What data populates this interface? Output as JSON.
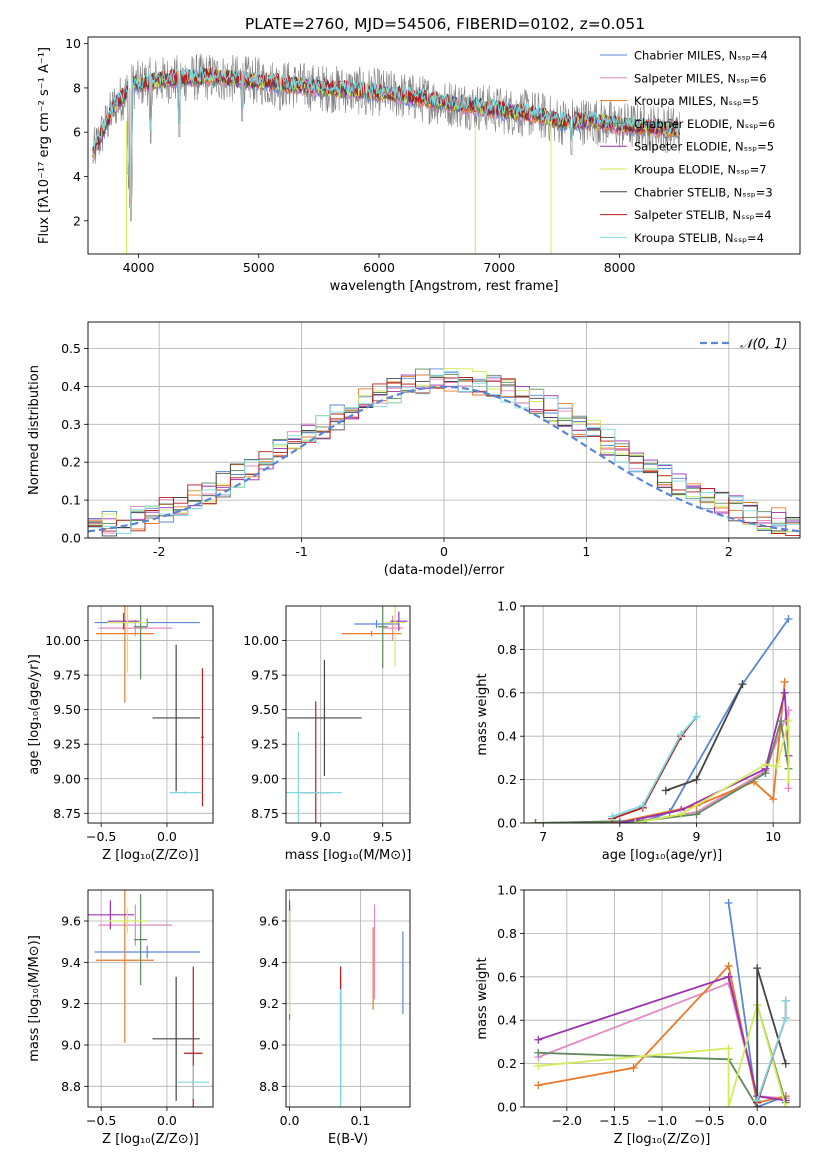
{
  "figure": {
    "title": "PLATE=2760, MJD=54506, FIBERID=0102, z=0.051"
  },
  "colors": {
    "Chabrier MILES": "#5b86d6",
    "Salpeter MILES": "#e58ac3",
    "Kroupa MILES": "#e87a2a",
    "Chabrier ELODIE": "#5f8a5f",
    "Salpeter ELODIE": "#9a30b0",
    "Kroupa ELODIE": "#d2ec5a",
    "Chabrier STELIB": "#444444",
    "Salpeter STELIB": "#b81c1c",
    "Kroupa STELIB": "#7fd9e0",
    "data": "#7f7f7f"
  },
  "chart_data": [
    {
      "id": "spectrum",
      "type": "line",
      "xlabel": "wavelength [Angstrom, rest frame]",
      "ylabel": "Flux [fλ10⁻¹⁷ erg cm⁻² s⁻¹ A⁻¹]",
      "xlim": [
        3580,
        9500
      ],
      "ylim": [
        0.5,
        10.3
      ],
      "xticks": [
        4000,
        5000,
        6000,
        7000,
        8000
      ],
      "yticks": [
        2,
        4,
        6,
        8,
        10
      ],
      "grid": false,
      "legend": "top-right",
      "legend_entries": [
        "Chabrier MILES, Nₛₛₚ=4",
        "Salpeter MILES, Nₛₛₚ=6",
        "Kroupa MILES, Nₛₛₚ=5",
        "Chabrier ELODIE, Nₛₛₚ=6",
        "Salpeter ELODIE, Nₛₛₚ=5",
        "Kroupa ELODIE, Nₛₛₚ=7",
        "Chabrier STELIB, Nₛₛₚ=3",
        "Salpeter STELIB, Nₛₛₚ=4",
        "Kroupa STELIB, Nₛₛₚ=4"
      ],
      "continuum": [
        [
          3620,
          5.0
        ],
        [
          3700,
          6.0
        ],
        [
          3800,
          7.2
        ],
        [
          3950,
          8.1
        ],
        [
          4100,
          8.3
        ],
        [
          4300,
          8.4
        ],
        [
          4600,
          8.5
        ],
        [
          5000,
          8.3
        ],
        [
          5500,
          8.0
        ],
        [
          6000,
          7.8
        ],
        [
          6500,
          7.4
        ],
        [
          7000,
          7.0
        ],
        [
          7300,
          6.8
        ],
        [
          7500,
          6.5
        ],
        [
          7800,
          6.5
        ],
        [
          8000,
          6.3
        ],
        [
          8300,
          6.2
        ],
        [
          8500,
          6.1
        ]
      ]
    },
    {
      "id": "residuals",
      "type": "histogram",
      "xlabel": "(data-model)/error",
      "ylabel": "Normed distribution",
      "xlim": [
        -2.5,
        2.5
      ],
      "ylim": [
        0,
        0.57
      ],
      "xticks": [
        -2,
        -1,
        0,
        1,
        2
      ],
      "yticks": [
        0.0,
        0.1,
        0.2,
        0.3,
        0.4,
        0.5
      ],
      "grid": true,
      "legend": "top-right",
      "reference_label": "𝒩(0, 1)",
      "bin_width": 0.1
    },
    {
      "id": "age_vs_Z",
      "type": "scatter",
      "xlabel": "Z [log₁₀(Z/Z⊙)]",
      "ylabel": "age  [log₁₀(age/yr)]",
      "xlim": [
        -0.6,
        0.35
      ],
      "ylim": [
        8.68,
        10.25
      ],
      "xticks": [
        -0.5,
        0.0
      ],
      "yticks": [
        8.75,
        9.0,
        9.25,
        9.5,
        9.75,
        10.0
      ],
      "grid": true,
      "points": [
        {
          "model": "Chabrier MILES",
          "x": -0.15,
          "y": 10.13,
          "xerr": 0.4,
          "yerr": 0.03
        },
        {
          "model": "Salpeter MILES",
          "x": -0.24,
          "y": 10.09,
          "xerr": 0.28,
          "yerr": 0.06
        },
        {
          "model": "Kroupa MILES",
          "x": -0.32,
          "y": 10.05,
          "xerr": 0.22,
          "yerr": 0.5
        },
        {
          "model": "Chabrier ELODIE",
          "x": -0.2,
          "y": 10.1,
          "xerr": 0.05,
          "yerr": 0.38
        },
        {
          "model": "Salpeter ELODIE",
          "x": -0.33,
          "y": 10.14,
          "xerr": 0.12,
          "yerr": 0.06
        },
        {
          "model": "Kroupa ELODIE",
          "x": -0.3,
          "y": 10.13,
          "xerr": 0.15,
          "yerr": 0.36
        },
        {
          "model": "Chabrier STELIB",
          "x": 0.07,
          "y": 9.44,
          "xerr": 0.18,
          "yerr": 0.53
        },
        {
          "model": "Salpeter STELIB",
          "x": 0.27,
          "y": 9.3,
          "xerr": 0.01,
          "yerr": 0.5
        },
        {
          "model": "Kroupa STELIB",
          "x": 0.14,
          "y": 8.9,
          "xerr": 0.12,
          "yerr": 0.01
        }
      ]
    },
    {
      "id": "age_vs_mass",
      "type": "scatter",
      "xlabel": "mass [log₁₀(M/M⊙)]",
      "ylabel": "",
      "xlim": [
        8.72,
        9.72
      ],
      "ylim": [
        8.68,
        10.25
      ],
      "xticks": [
        9.0,
        9.5
      ],
      "yticks": [
        8.75,
        9.0,
        9.25,
        9.5,
        9.75,
        10.0
      ],
      "grid": true,
      "points": [
        {
          "model": "Chabrier MILES",
          "x": 9.45,
          "y": 10.12,
          "xerr": 0.18,
          "yerr": 0.03
        },
        {
          "model": "Salpeter MILES",
          "x": 9.58,
          "y": 10.09,
          "xerr": 0.08,
          "yerr": 0.09
        },
        {
          "model": "Kroupa MILES",
          "x": 9.41,
          "y": 10.05,
          "xerr": 0.24,
          "yerr": 0.02
        },
        {
          "model": "Chabrier ELODIE",
          "x": 9.5,
          "y": 10.1,
          "xerr": 0.04,
          "yerr": 0.3
        },
        {
          "model": "Salpeter ELODIE",
          "x": 9.63,
          "y": 10.14,
          "xerr": 0.07,
          "yerr": 0.07
        },
        {
          "model": "Kroupa ELODIE",
          "x": 9.6,
          "y": 10.13,
          "xerr": 0.08,
          "yerr": 0.32
        },
        {
          "model": "Chabrier STELIB",
          "x": 9.03,
          "y": 9.44,
          "xerr": 0.3,
          "yerr": 0.42
        },
        {
          "model": "Salpeter STELIB",
          "x": 8.96,
          "y": 8.9,
          "xerr": 0.13,
          "yerr": 0.66
        },
        {
          "model": "Kroupa STELIB",
          "x": 8.82,
          "y": 8.9,
          "xerr": 0.35,
          "yerr": 0.44
        }
      ]
    },
    {
      "id": "mass_weight_vs_age",
      "type": "line",
      "xlabel": "age  [log₁₀(age/yr)]",
      "ylabel": "mass weight",
      "xlim": [
        6.75,
        10.35
      ],
      "ylim": [
        0,
        1.0
      ],
      "xticks": [
        7,
        8,
        9,
        10
      ],
      "yticks": [
        0.0,
        0.2,
        0.4,
        0.6,
        0.8,
        1.0
      ],
      "grid": true,
      "series": [
        {
          "model": "Chabrier MILES",
          "x": [
            7.9,
            8.3,
            8.65,
            9.6,
            10.2
          ],
          "y": [
            0.0,
            0.005,
            0.05,
            0.64,
            0.94
          ]
        },
        {
          "model": "Salpeter MILES",
          "x": [
            6.9,
            8.3,
            9.0,
            9.9,
            10.2,
            10.2
          ],
          "y": [
            0.0,
            0.01,
            0.05,
            0.24,
            0.52,
            0.16
          ]
        },
        {
          "model": "Kroupa MILES",
          "x": [
            6.9,
            8.0,
            9.0,
            9.75,
            10.0,
            10.15
          ],
          "y": [
            0.0,
            0.005,
            0.08,
            0.19,
            0.11,
            0.65
          ]
        },
        {
          "model": "Chabrier ELODIE",
          "x": [
            6.9,
            8.3,
            9.0,
            9.9,
            10.1,
            10.2
          ],
          "y": [
            0.0,
            0.01,
            0.04,
            0.23,
            0.47,
            0.25
          ]
        },
        {
          "model": "Salpeter ELODIE",
          "x": [
            8.0,
            8.8,
            9.9,
            10.15,
            10.2
          ],
          "y": [
            0.0,
            0.06,
            0.25,
            0.6,
            0.31
          ]
        },
        {
          "model": "Kroupa ELODIE",
          "x": [
            8.2,
            8.8,
            9.9,
            10.05,
            10.2,
            10.2
          ],
          "y": [
            0.0,
            0.04,
            0.27,
            0.26,
            0.47,
            0.2
          ]
        },
        {
          "model": "Chabrier STELIB",
          "x": [
            8.6,
            9.0,
            9.6
          ],
          "y": [
            0.15,
            0.2,
            0.64
          ]
        },
        {
          "model": "Salpeter STELIB",
          "x": [
            7.9,
            8.3,
            8.8,
            9.0
          ],
          "y": [
            0.02,
            0.07,
            0.4,
            0.49
          ]
        },
        {
          "model": "Kroupa STELIB",
          "x": [
            7.9,
            8.3,
            8.8,
            9.0
          ],
          "y": [
            0.03,
            0.08,
            0.41,
            0.49
          ]
        }
      ]
    },
    {
      "id": "mass_vs_Z",
      "type": "scatter",
      "xlabel": "Z [log₁₀(Z/Z⊙)]",
      "ylabel": "mass [log₁₀(M/M⊙)]",
      "xlim": [
        -0.6,
        0.35
      ],
      "ylim": [
        8.7,
        9.75
      ],
      "xticks": [
        -0.5,
        0.0
      ],
      "yticks": [
        8.8,
        9.0,
        9.2,
        9.4,
        9.6
      ],
      "grid": true,
      "points": [
        {
          "model": "Chabrier MILES",
          "x": -0.15,
          "y": 9.45,
          "xerr": 0.4,
          "yerr": 0.03
        },
        {
          "model": "Salpeter MILES",
          "x": -0.24,
          "y": 9.58,
          "xerr": 0.28,
          "yerr": 0.1
        },
        {
          "model": "Kroupa MILES",
          "x": -0.32,
          "y": 9.41,
          "xerr": 0.22,
          "yerr": 0.4
        },
        {
          "model": "Chabrier ELODIE",
          "x": -0.2,
          "y": 9.51,
          "xerr": 0.05,
          "yerr": 0.22
        },
        {
          "model": "Salpeter ELODIE",
          "x": -0.43,
          "y": 9.63,
          "xerr": 0.18,
          "yerr": 0.07
        },
        {
          "model": "Kroupa ELODIE",
          "x": -0.3,
          "y": 9.6,
          "xerr": 0.15,
          "yerr": 0.06
        },
        {
          "model": "Chabrier STELIB",
          "x": 0.07,
          "y": 9.03,
          "xerr": 0.18,
          "yerr": 0.3
        },
        {
          "model": "Salpeter STELIB",
          "x": 0.2,
          "y": 8.96,
          "xerr": 0.07,
          "yerr": 0.42
        },
        {
          "model": "Kroupa STELIB",
          "x": 0.2,
          "y": 8.82,
          "xerr": 0.12,
          "yerr": 0.08
        }
      ]
    },
    {
      "id": "mass_vs_ebv",
      "type": "scatter",
      "xlabel": "E(B-V)",
      "ylabel": "",
      "xlim": [
        -0.005,
        0.17
      ],
      "ylim": [
        8.7,
        9.75
      ],
      "xticks": [
        0.0,
        0.1
      ],
      "yticks": [
        8.8,
        9.0,
        9.2,
        9.4,
        9.6
      ],
      "grid": true,
      "points": [
        {
          "model": "Chabrier MILES",
          "x": 0.16,
          "y": 9.35,
          "xerr": 0.0,
          "yerr": 0.2
        },
        {
          "model": "Salpeter MILES",
          "x": 0.12,
          "y": 9.45,
          "xerr": 0.0,
          "yerr": 0.23
        },
        {
          "model": "Kroupa MILES",
          "x": 0.118,
          "y": 9.37,
          "xerr": 0.0,
          "yerr": 0.2
        },
        {
          "model": "Chabrier ELODIE",
          "x": 0.0,
          "y": 9.4,
          "xerr": 0.0,
          "yerr": 0.28
        },
        {
          "model": "Salpeter ELODIE",
          "x": 0.0,
          "y": 9.55,
          "xerr": 0.0,
          "yerr": 0.15
        },
        {
          "model": "Kroupa ELODIE",
          "x": 0.0,
          "y": 9.4,
          "xerr": 0.0,
          "yerr": 0.25
        },
        {
          "model": "Chabrier STELIB",
          "x": 0.072,
          "y": 9.03,
          "xerr": 0.0,
          "yerr": 0.3
        },
        {
          "model": "Salpeter STELIB",
          "x": 0.072,
          "y": 9.2,
          "xerr": 0.0,
          "yerr": 0.18
        },
        {
          "model": "Kroupa STELIB",
          "x": 0.072,
          "y": 8.85,
          "xerr": 0.0,
          "yerr": 0.42
        }
      ]
    },
    {
      "id": "mass_weight_vs_Z",
      "type": "line",
      "xlabel": "Z [log₁₀(Z/Z⊙)]",
      "ylabel": "mass weight",
      "xlim": [
        -2.45,
        0.45
      ],
      "ylim": [
        0,
        1.0
      ],
      "xticks": [
        -2.0,
        -1.5,
        -1.0,
        -0.5,
        0.0
      ],
      "yticks": [
        0.0,
        0.2,
        0.4,
        0.6,
        0.8,
        1.0
      ],
      "grid": true,
      "series": [
        {
          "model": "Chabrier MILES",
          "x": [
            -0.3,
            0.0,
            0.3
          ],
          "y": [
            0.94,
            0.0,
            0.05
          ]
        },
        {
          "model": "Salpeter MILES",
          "x": [
            -2.3,
            -0.3,
            0.0,
            0.3
          ],
          "y": [
            0.23,
            0.57,
            0.05,
            0.04
          ]
        },
        {
          "model": "Kroupa MILES",
          "x": [
            -2.3,
            -1.3,
            -0.3,
            0.0,
            0.3
          ],
          "y": [
            0.1,
            0.18,
            0.65,
            0.02,
            0.05
          ]
        },
        {
          "model": "Chabrier ELODIE",
          "x": [
            -2.3,
            -0.3,
            0.0,
            0.0,
            0.3
          ],
          "y": [
            0.25,
            0.22,
            0.0,
            0.47,
            0.02
          ]
        },
        {
          "model": "Salpeter ELODIE",
          "x": [
            -2.3,
            -0.3,
            0.0,
            0.3
          ],
          "y": [
            0.31,
            0.6,
            0.05,
            0.03
          ]
        },
        {
          "model": "Kroupa ELODIE",
          "x": [
            -2.3,
            -0.3,
            -0.3,
            0.0,
            0.3
          ],
          "y": [
            0.19,
            0.27,
            0.0,
            0.47,
            0.0
          ]
        },
        {
          "model": "Chabrier STELIB",
          "x": [
            0.0,
            0.0,
            0.3
          ],
          "y": [
            0.0,
            0.64,
            0.2
          ]
        },
        {
          "model": "Salpeter STELIB",
          "x": [
            0.0,
            0.3,
            0.3
          ],
          "y": [
            0.02,
            0.41,
            0.49
          ]
        },
        {
          "model": "Kroupa STELIB",
          "x": [
            0.0,
            0.3,
            0.3
          ],
          "y": [
            0.03,
            0.41,
            0.49
          ]
        }
      ]
    }
  ]
}
